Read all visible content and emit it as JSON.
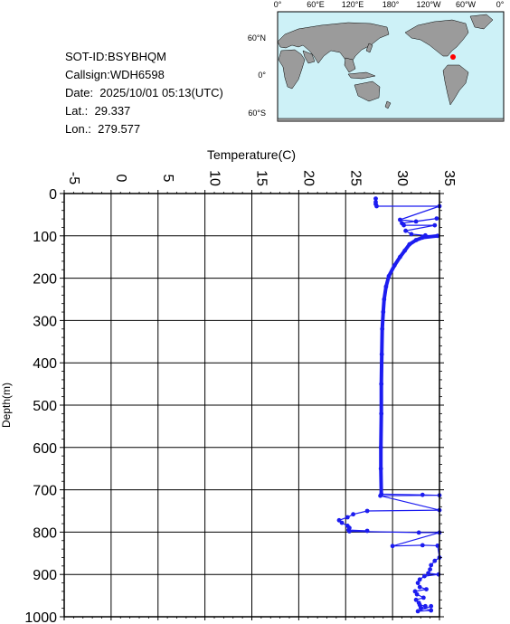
{
  "info": {
    "sot_id": "SOT-ID:BSYBHQM",
    "callsign": "Callsign:WDH6598",
    "date": "Date:  2025/10/01 05:13(UTC)",
    "lat": "Lat.:  29.337",
    "lon": "Lon.:  279.577"
  },
  "map": {
    "top_labels": [
      "0°",
      "60°E",
      "120°E",
      "180°",
      "120°W",
      "60°W",
      "0°"
    ],
    "left_labels": [
      "60°N",
      "0°",
      "60°S"
    ],
    "ocean_color": "#cdf1f7",
    "land_color": "#9b9b9b",
    "marker_color": "#ff0000",
    "marker_lat": 29.337,
    "marker_lon": 279.577
  },
  "chart_data": {
    "type": "line",
    "xlabel": "Temperature(C)",
    "ylabel": "Depth(m)",
    "xlim": [
      -5,
      35
    ],
    "ylim": [
      1000,
      0
    ],
    "xticks": [
      "-5",
      "0",
      "5",
      "10",
      "15",
      "20",
      "25",
      "30",
      "35"
    ],
    "yticks": [
      "0",
      "100",
      "200",
      "300",
      "400",
      "500",
      "600",
      "700",
      "800",
      "900",
      "1000"
    ],
    "grid": true,
    "series_color": "#1c1cf0",
    "series": [
      {
        "points": [
          [
            28.2,
            12
          ],
          [
            28.2,
            20
          ],
          [
            28.2,
            25
          ],
          [
            28.3,
            30
          ],
          [
            35.0,
            30
          ],
          [
            30.8,
            62
          ],
          [
            32.5,
            66
          ],
          [
            34.7,
            59
          ],
          [
            31.0,
            70
          ],
          [
            31.2,
            75
          ],
          [
            34.5,
            75
          ],
          [
            31.4,
            88
          ],
          [
            32.0,
            96
          ],
          [
            33.5,
            99
          ],
          [
            34.8,
            100
          ],
          [
            33.2,
            104
          ],
          [
            32.5,
            110
          ],
          [
            31.8,
            120
          ],
          [
            31.3,
            135
          ],
          [
            30.8,
            150
          ],
          [
            30.2,
            170
          ],
          [
            29.6,
            195
          ],
          [
            29.3,
            220
          ],
          [
            29.1,
            250
          ],
          [
            29.0,
            280
          ],
          [
            28.9,
            320
          ],
          [
            28.85,
            380
          ],
          [
            28.8,
            450
          ],
          [
            28.8,
            520
          ],
          [
            28.75,
            600
          ],
          [
            28.75,
            650
          ],
          [
            28.8,
            710
          ],
          [
            33.2,
            712
          ],
          [
            35.0,
            713
          ],
          [
            28.7,
            714
          ],
          [
            35.0,
            748
          ],
          [
            27.3,
            750
          ],
          [
            25.8,
            758
          ],
          [
            25.2,
            765
          ],
          [
            24.3,
            772
          ],
          [
            24.6,
            778
          ],
          [
            25.2,
            785
          ],
          [
            25.4,
            790
          ],
          [
            25.3,
            795
          ],
          [
            27.3,
            797
          ],
          [
            25.4,
            798
          ],
          [
            32.8,
            801
          ],
          [
            35.0,
            801
          ],
          [
            30.0,
            833
          ],
          [
            33.2,
            831
          ],
          [
            34.8,
            832
          ],
          [
            35.0,
            860
          ],
          [
            34.5,
            868
          ],
          [
            34.1,
            878
          ],
          [
            34.0,
            888
          ],
          [
            33.8,
            897
          ],
          [
            34.9,
            900
          ],
          [
            33.4,
            904
          ],
          [
            32.9,
            912
          ],
          [
            32.7,
            920
          ],
          [
            32.9,
            930
          ],
          [
            33.6,
            935
          ],
          [
            32.4,
            940
          ],
          [
            32.6,
            947
          ],
          [
            33.3,
            955
          ],
          [
            32.5,
            960
          ],
          [
            32.8,
            967
          ],
          [
            32.9,
            972
          ],
          [
            33.5,
            975
          ],
          [
            33.0,
            979
          ],
          [
            34.1,
            985
          ],
          [
            32.7,
            987
          ],
          [
            34.1,
            975
          ]
        ]
      }
    ]
  }
}
